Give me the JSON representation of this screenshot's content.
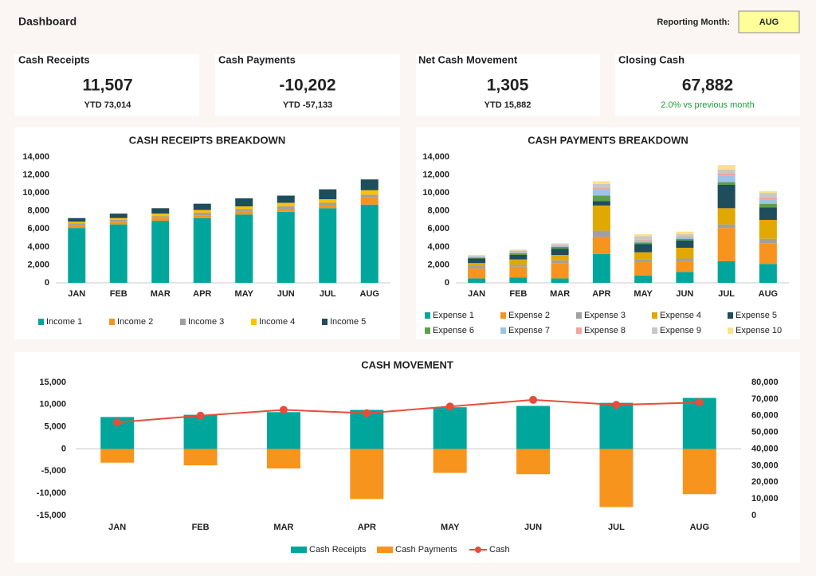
{
  "header": {
    "title": "Dashboard",
    "reporting_label": "Reporting Month:",
    "reporting_month": "AUG"
  },
  "kpis": [
    {
      "title": "Cash Receipts",
      "value": "11,507",
      "ytd": "YTD 73,014"
    },
    {
      "title": "Cash Payments",
      "value": "-10,202",
      "ytd": "YTD -57,133"
    },
    {
      "title": "Net Cash Movement",
      "value": "1,305",
      "ytd": "YTD 15,882"
    },
    {
      "title": "Closing Cash",
      "value": "67,882",
      "note": "2.0% vs previous month"
    }
  ],
  "chart_data": [
    {
      "type": "bar",
      "stacked": true,
      "title": "CASH RECEIPTS BREAKDOWN",
      "categories": [
        "JAN",
        "FEB",
        "MAR",
        "APR",
        "MAY",
        "JUN",
        "JUL",
        "AUG"
      ],
      "ylim": [
        0,
        14000
      ],
      "yticks": [
        0,
        {
          "value": 2000,
          "label": "2,000"
        },
        {
          "value": 4000,
          "label": "4,000"
        },
        {
          "value": 6000,
          "label": "6,000"
        },
        {
          "value": 8000,
          "label": "8,000"
        },
        {
          "value": 10000,
          "label": "10,000"
        },
        {
          "value": 12000,
          "label": "12,000"
        },
        {
          "value": 14000,
          "label": "14,000"
        }
      ],
      "legend": "bottom",
      "series": [
        {
          "name": "Income 1",
          "color": "#00a69c",
          "values": [
            6100,
            6500,
            6900,
            7200,
            7600,
            7900,
            8300,
            8700
          ]
        },
        {
          "name": "Income 2",
          "color": "#f7941d",
          "values": [
            300,
            300,
            300,
            300,
            300,
            300,
            300,
            800
          ]
        },
        {
          "name": "Income 3",
          "color": "#a0a0a0",
          "values": [
            200,
            200,
            200,
            300,
            300,
            300,
            300,
            300
          ]
        },
        {
          "name": "Income 4",
          "color": "#ffc000",
          "values": [
            200,
            200,
            300,
            300,
            300,
            400,
            400,
            500
          ]
        },
        {
          "name": "Income 5",
          "color": "#1e4d5c",
          "values": [
            400,
            500,
            600,
            700,
            900,
            800,
            1100,
            1200
          ]
        }
      ]
    },
    {
      "type": "bar",
      "stacked": true,
      "title": "CASH PAYMENTS BREAKDOWN",
      "categories": [
        "JAN",
        "FEB",
        "MAR",
        "APR",
        "MAY",
        "JUN",
        "JUL",
        "AUG"
      ],
      "ylim": [
        0,
        14000
      ],
      "yticks": [
        0,
        {
          "value": 2000,
          "label": "2,000"
        },
        {
          "value": 4000,
          "label": "4,000"
        },
        {
          "value": 6000,
          "label": "6,000"
        },
        {
          "value": 8000,
          "label": "8,000"
        },
        {
          "value": 10000,
          "label": "10,000"
        },
        {
          "value": 12000,
          "label": "12,000"
        },
        {
          "value": 14000,
          "label": "14,000"
        }
      ],
      "legend": "bottom",
      "series": [
        {
          "name": "Expense 1",
          "color": "#00a69c",
          "values": [
            500,
            600,
            500,
            3200,
            800,
            1200,
            2400,
            2100
          ]
        },
        {
          "name": "Expense 2",
          "color": "#f7941d",
          "values": [
            1100,
            1200,
            1700,
            1900,
            1500,
            1200,
            3700,
            2300
          ]
        },
        {
          "name": "Expense 3",
          "color": "#a0a0a0",
          "values": [
            300,
            200,
            300,
            700,
            300,
            300,
            400,
            500
          ]
        },
        {
          "name": "Expense 4",
          "color": "#e0a800",
          "values": [
            300,
            600,
            600,
            2800,
            800,
            1200,
            1800,
            2100
          ]
        },
        {
          "name": "Expense 5",
          "color": "#1e4d5c",
          "values": [
            500,
            500,
            700,
            500,
            900,
            800,
            2600,
            1400
          ]
        },
        {
          "name": "Expense 6",
          "color": "#5ba04a",
          "values": [
            100,
            200,
            200,
            600,
            200,
            200,
            300,
            400
          ]
        },
        {
          "name": "Expense 7",
          "color": "#9dc3e6",
          "values": [
            100,
            100,
            100,
            700,
            200,
            200,
            700,
            500
          ]
        },
        {
          "name": "Expense 8",
          "color": "#f4a49a",
          "values": [
            0,
            100,
            100,
            200,
            100,
            100,
            300,
            200
          ]
        },
        {
          "name": "Expense 9",
          "color": "#c8c8c8",
          "values": [
            100,
            100,
            100,
            400,
            400,
            200,
            400,
            500
          ]
        },
        {
          "name": "Expense 10",
          "color": "#ffe08a",
          "values": [
            100,
            100,
            100,
            300,
            200,
            300,
            500,
            200
          ]
        }
      ]
    },
    {
      "type": "combo",
      "title": "CASH MOVEMENT",
      "categories": [
        "JAN",
        "FEB",
        "MAR",
        "APR",
        "MAY",
        "JUN",
        "JUL",
        "AUG"
      ],
      "ylim": [
        -15000,
        15000
      ],
      "yticks": [
        {
          "value": -15000,
          "label": "-15,000"
        },
        {
          "value": -10000,
          "label": "-10,000"
        },
        {
          "value": -5000,
          "label": "-5,000"
        },
        0,
        {
          "value": 5000,
          "label": "5,000"
        },
        {
          "value": 10000,
          "label": "10,000"
        },
        {
          "value": 15000,
          "label": "15,000"
        }
      ],
      "y2lim": [
        0,
        80000
      ],
      "y2ticks": [
        0,
        {
          "value": 10000,
          "label": "10,000"
        },
        {
          "value": 20000,
          "label": "20,000"
        },
        {
          "value": 30000,
          "label": "30,000"
        },
        {
          "value": 40000,
          "label": "40,000"
        },
        {
          "value": 50000,
          "label": "50,000"
        },
        {
          "value": 60000,
          "label": "60,000"
        },
        {
          "value": 70000,
          "label": "70,000"
        },
        {
          "value": 80000,
          "label": "80,000"
        }
      ],
      "legend": "bottom",
      "series": [
        {
          "name": "Cash Receipts",
          "type": "bar",
          "color": "#00a69c",
          "values": [
            7200,
            7700,
            8300,
            8800,
            9400,
            9700,
            10400,
            11507
          ]
        },
        {
          "name": "Cash Payments",
          "type": "bar",
          "color": "#f7941d",
          "values": [
            -3100,
            -3700,
            -4400,
            -11300,
            -5400,
            -5700,
            -13100,
            -10202
          ]
        },
        {
          "name": "Cash",
          "type": "line",
          "axis": "y2",
          "color": "#e84c3d",
          "values": [
            56000,
            60000,
            63500,
            61500,
            65500,
            69500,
            66500,
            67882
          ]
        }
      ]
    }
  ]
}
